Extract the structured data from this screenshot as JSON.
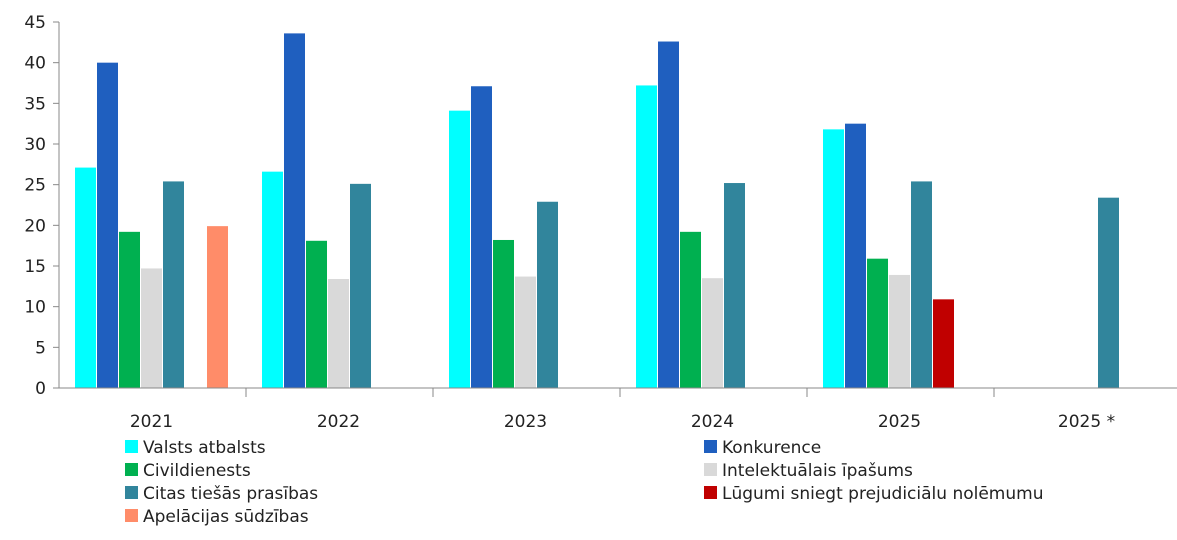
{
  "chart_data": {
    "type": "bar",
    "categories": [
      "2021",
      "2022",
      "2023",
      "2024",
      "2025",
      "2025 *"
    ],
    "ylim": [
      0,
      45
    ],
    "yticks": [
      0,
      5,
      10,
      15,
      20,
      25,
      30,
      35,
      40,
      45
    ],
    "grid": false,
    "legend_position": "bottom",
    "series": [
      {
        "name": "Valsts atbalsts",
        "color": "#00FFFF",
        "values": [
          27.1,
          26.6,
          34.1,
          37.2,
          31.8,
          null
        ]
      },
      {
        "name": "Konkurence",
        "color": "#1F5FBF",
        "values": [
          40.0,
          43.6,
          37.1,
          42.6,
          32.5,
          null
        ]
      },
      {
        "name": "Civildienests",
        "color": "#00B050",
        "values": [
          19.2,
          18.1,
          18.2,
          19.2,
          15.9,
          null
        ]
      },
      {
        "name": "Intelektuālais īpašums",
        "color": "#D9D9D9",
        "values": [
          14.7,
          13.4,
          13.7,
          13.5,
          13.9,
          null
        ]
      },
      {
        "name": "Citas tiešās prasības",
        "color": "#31859C",
        "values": [
          25.4,
          25.1,
          22.9,
          25.2,
          25.4,
          23.4
        ]
      },
      {
        "name": "Lūgumi sniegt prejudiciālu nolēmumu",
        "color": "#C00000",
        "values": [
          null,
          null,
          null,
          null,
          10.9,
          null
        ]
      },
      {
        "name": "Apelācijas sūdzības",
        "color": "#FF8C69",
        "values": [
          19.9,
          null,
          null,
          null,
          null,
          null
        ]
      }
    ]
  }
}
